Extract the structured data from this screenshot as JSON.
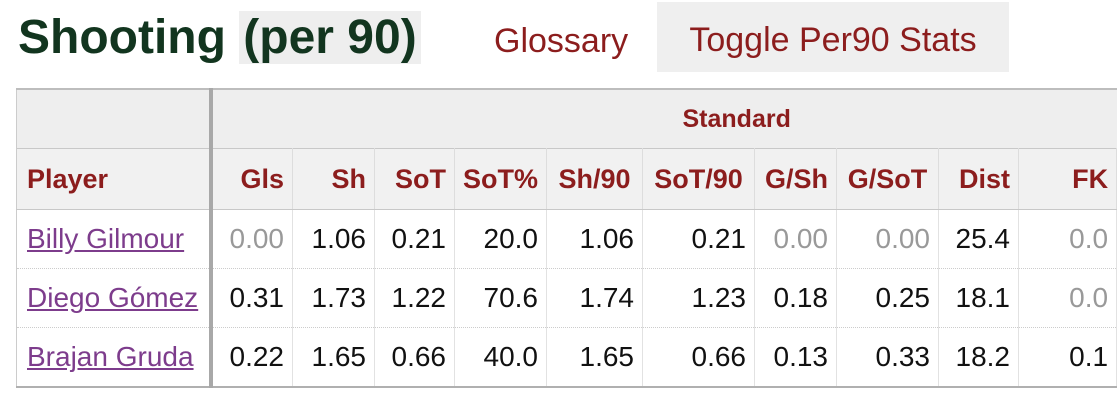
{
  "header": {
    "title_main": "Shooting",
    "title_paren": "(per 90)",
    "glossary_label": "Glossary",
    "toggle_label": "Toggle Per90 Stats"
  },
  "table": {
    "group_label": "Standard",
    "columns": [
      "Player",
      "Gls",
      "Sh",
      "SoT",
      "SoT%",
      "Sh/90",
      "SoT/90",
      "G/Sh",
      "G/SoT",
      "Dist",
      "FK"
    ],
    "rows": [
      {
        "player": "Billy Gilmour",
        "values": [
          "0.00",
          "1.06",
          "0.21",
          "20.0",
          "1.06",
          "0.21",
          "0.00",
          "0.00",
          "25.4",
          "0.0"
        ],
        "zero": [
          true,
          false,
          false,
          false,
          false,
          false,
          true,
          true,
          false,
          true
        ]
      },
      {
        "player": "Diego Gómez",
        "values": [
          "0.31",
          "1.73",
          "1.22",
          "70.6",
          "1.74",
          "1.23",
          "0.18",
          "0.25",
          "18.1",
          "0.0"
        ],
        "zero": [
          false,
          false,
          false,
          false,
          false,
          false,
          false,
          false,
          false,
          true
        ]
      },
      {
        "player": "Brajan Gruda",
        "values": [
          "0.22",
          "1.65",
          "0.66",
          "40.0",
          "1.65",
          "0.66",
          "0.13",
          "0.33",
          "18.2",
          "0.1"
        ],
        "zero": [
          false,
          false,
          false,
          false,
          false,
          false,
          false,
          false,
          false,
          false
        ]
      }
    ]
  }
}
